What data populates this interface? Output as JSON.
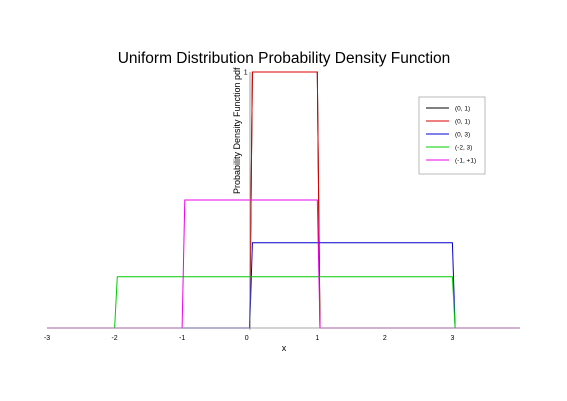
{
  "chart_data": {
    "type": "line",
    "title": "Uniform Distribution Probability Density Function",
    "xlabel": "x",
    "ylabel": "Probability Density Function pdf",
    "xlim": [
      -3,
      4
    ],
    "ylim": [
      0,
      1
    ],
    "x_ticks": [
      "-3",
      "-2",
      "-1",
      "0",
      "1",
      "2",
      "3"
    ],
    "y_ticks": [
      "0",
      "1"
    ],
    "legend_position": "upper-right",
    "series": [
      {
        "name": "(0, 1)",
        "color": "#000000",
        "points": [
          [
            -3,
            0
          ],
          [
            0,
            0
          ],
          [
            0,
            1
          ],
          [
            1,
            1
          ],
          [
            1,
            0
          ],
          [
            4,
            0
          ]
        ]
      },
      {
        "name": "(0, 1)",
        "color": "#dd0000",
        "points": [
          [
            -3,
            0
          ],
          [
            0,
            0
          ],
          [
            0,
            1
          ],
          [
            1,
            1
          ],
          [
            1,
            0
          ],
          [
            4,
            0
          ]
        ]
      },
      {
        "name": "(0, 3)",
        "color": "#0000cc",
        "points": [
          [
            -3,
            0
          ],
          [
            0,
            0
          ],
          [
            0,
            0.333
          ],
          [
            3,
            0.333
          ],
          [
            3,
            0
          ],
          [
            4,
            0
          ]
        ]
      },
      {
        "name": "(-2, 3)",
        "color": "#00cc00",
        "points": [
          [
            -3,
            0
          ],
          [
            -2,
            0
          ],
          [
            -2,
            0.2
          ],
          [
            3,
            0.2
          ],
          [
            3,
            0
          ],
          [
            4,
            0
          ]
        ]
      },
      {
        "name": "(-1, +1)",
        "color": "#ee00ee",
        "points": [
          [
            -3,
            0
          ],
          [
            -1,
            0
          ],
          [
            -1,
            0.5
          ],
          [
            1,
            0.5
          ],
          [
            1,
            0
          ],
          [
            4,
            0
          ]
        ]
      }
    ]
  }
}
